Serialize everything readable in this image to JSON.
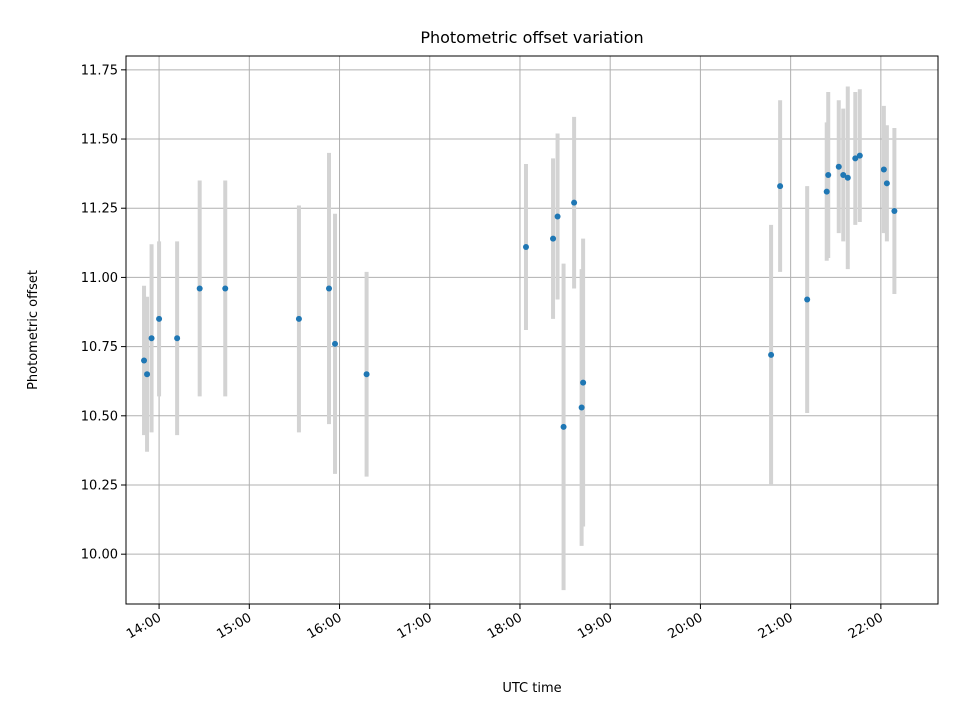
{
  "chart_data": {
    "type": "scatter",
    "title": "Photometric offset variation",
    "xlabel": "UTC time",
    "ylabel": "Photometric offset",
    "grid": true,
    "xlim": [
      "13:38",
      "22:38"
    ],
    "ylim": [
      9.82,
      11.8
    ],
    "x_ticks": [
      "14:00",
      "15:00",
      "16:00",
      "17:00",
      "18:00",
      "19:00",
      "20:00",
      "21:00",
      "22:00"
    ],
    "y_ticks": [
      "10.00",
      "10.25",
      "10.50",
      "10.75",
      "11.00",
      "11.25",
      "11.50",
      "11.75"
    ],
    "point_color": "#1f77b4",
    "errorbar_color": "#d3d3d3",
    "points": [
      {
        "x": "13:50",
        "y": 10.7,
        "err": 0.27
      },
      {
        "x": "13:52",
        "y": 10.65,
        "err": 0.28
      },
      {
        "x": "13:55",
        "y": 10.78,
        "err": 0.34
      },
      {
        "x": "14:00",
        "y": 10.85,
        "err": 0.28
      },
      {
        "x": "14:12",
        "y": 10.78,
        "err": 0.35
      },
      {
        "x": "14:27",
        "y": 10.96,
        "err": 0.39
      },
      {
        "x": "14:44",
        "y": 10.96,
        "err": 0.39
      },
      {
        "x": "15:33",
        "y": 10.85,
        "err": 0.41
      },
      {
        "x": "15:53",
        "y": 10.96,
        "err": 0.49
      },
      {
        "x": "15:57",
        "y": 10.76,
        "err": 0.47
      },
      {
        "x": "16:18",
        "y": 10.65,
        "err": 0.37
      },
      {
        "x": "18:04",
        "y": 11.11,
        "err": 0.3
      },
      {
        "x": "18:22",
        "y": 11.14,
        "err": 0.29
      },
      {
        "x": "18:25",
        "y": 11.22,
        "err": 0.3
      },
      {
        "x": "18:29",
        "y": 10.46,
        "err": 0.59
      },
      {
        "x": "18:36",
        "y": 11.27,
        "err": 0.31
      },
      {
        "x": "18:41",
        "y": 10.53,
        "err": 0.5
      },
      {
        "x": "18:42",
        "y": 10.62,
        "err": 0.52
      },
      {
        "x": "20:47",
        "y": 10.72,
        "err": 0.47
      },
      {
        "x": "20:53",
        "y": 11.33,
        "err": 0.31
      },
      {
        "x": "21:11",
        "y": 10.92,
        "err": 0.41
      },
      {
        "x": "21:24",
        "y": 11.31,
        "err": 0.25
      },
      {
        "x": "21:25",
        "y": 11.37,
        "err": 0.3
      },
      {
        "x": "21:32",
        "y": 11.4,
        "err": 0.24
      },
      {
        "x": "21:35",
        "y": 11.37,
        "err": 0.24
      },
      {
        "x": "21:38",
        "y": 11.36,
        "err": 0.33
      },
      {
        "x": "21:43",
        "y": 11.43,
        "err": 0.24
      },
      {
        "x": "21:46",
        "y": 11.44,
        "err": 0.24
      },
      {
        "x": "22:02",
        "y": 11.39,
        "err": 0.23
      },
      {
        "x": "22:04",
        "y": 11.34,
        "err": 0.21
      },
      {
        "x": "22:09",
        "y": 11.24,
        "err": 0.3
      }
    ]
  }
}
